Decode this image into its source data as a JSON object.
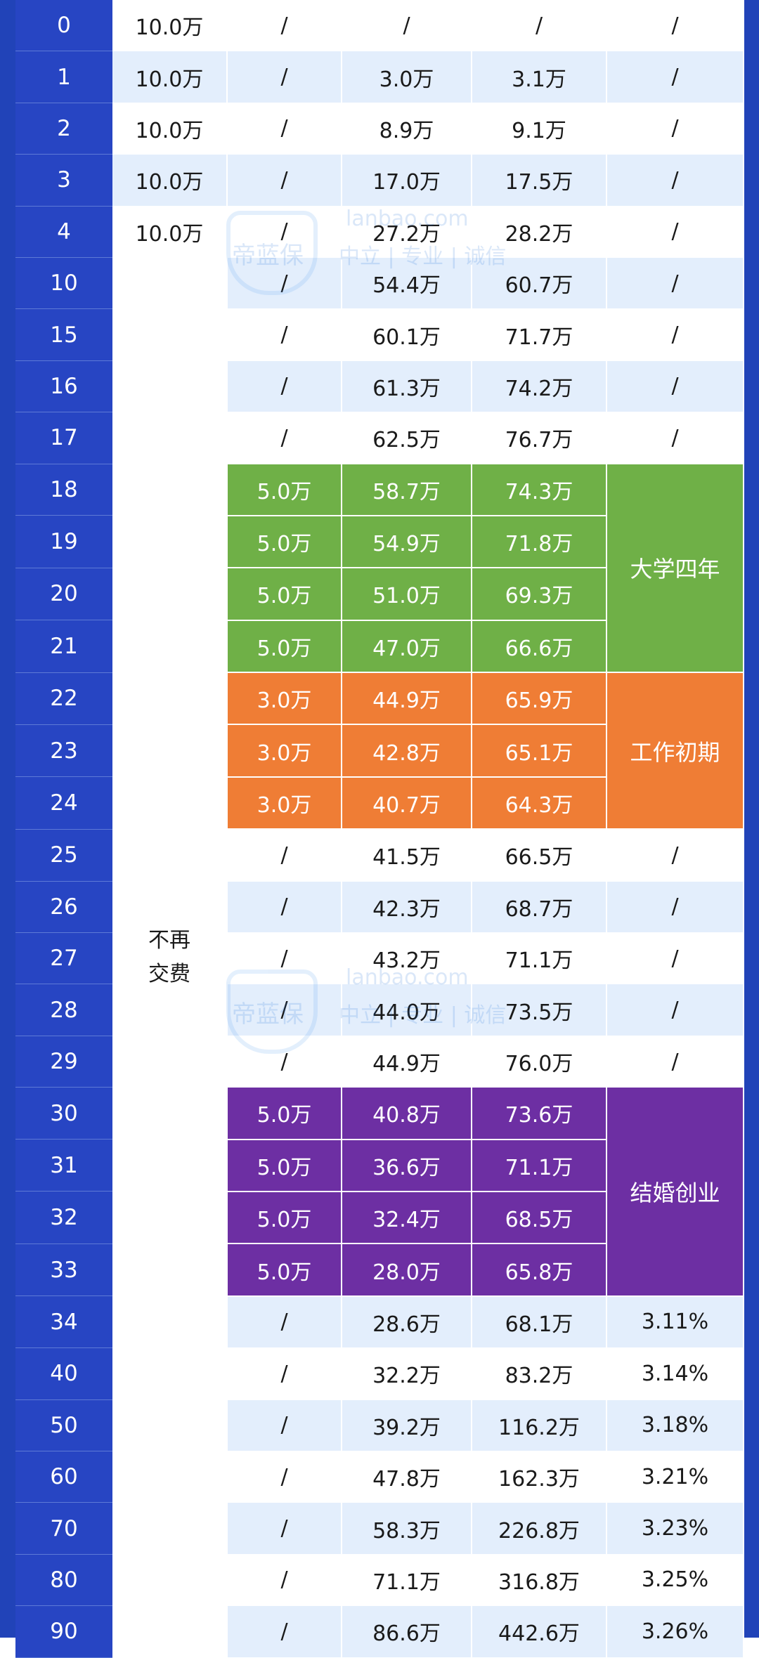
{
  "rows": [
    {
      "age": "0",
      "pay": "10.0万",
      "a": "/",
      "b": "/",
      "c": "/",
      "d": "/"
    },
    {
      "age": "1",
      "pay": "10.0万",
      "a": "/",
      "b": "3.0万",
      "c": "3.1万",
      "d": "/"
    },
    {
      "age": "2",
      "pay": "10.0万",
      "a": "/",
      "b": "8.9万",
      "c": "9.1万",
      "d": "/"
    },
    {
      "age": "3",
      "pay": "10.0万",
      "a": "/",
      "b": "17.0万",
      "c": "17.5万",
      "d": "/"
    },
    {
      "age": "4",
      "pay": "10.0万",
      "a": "/",
      "b": "27.2万",
      "c": "28.2万",
      "d": "/"
    },
    {
      "age": "10",
      "a": "/",
      "b": "54.4万",
      "c": "60.7万",
      "d": "/"
    },
    {
      "age": "15",
      "a": "/",
      "b": "60.1万",
      "c": "71.7万",
      "d": "/"
    },
    {
      "age": "16",
      "a": "/",
      "b": "61.3万",
      "c": "74.2万",
      "d": "/"
    },
    {
      "age": "17",
      "a": "/",
      "b": "62.5万",
      "c": "76.7万",
      "d": "/"
    },
    {
      "age": "18",
      "a": "5.0万",
      "b": "58.7万",
      "c": "74.3万"
    },
    {
      "age": "19",
      "a": "5.0万",
      "b": "54.9万",
      "c": "71.8万"
    },
    {
      "age": "20",
      "a": "5.0万",
      "b": "51.0万",
      "c": "69.3万"
    },
    {
      "age": "21",
      "a": "5.0万",
      "b": "47.0万",
      "c": "66.6万"
    },
    {
      "age": "22",
      "a": "3.0万",
      "b": "44.9万",
      "c": "65.9万"
    },
    {
      "age": "23",
      "a": "3.0万",
      "b": "42.8万",
      "c": "65.1万"
    },
    {
      "age": "24",
      "a": "3.0万",
      "b": "40.7万",
      "c": "64.3万"
    },
    {
      "age": "25",
      "a": "/",
      "b": "41.5万",
      "c": "66.5万",
      "d": "/"
    },
    {
      "age": "26",
      "a": "/",
      "b": "42.3万",
      "c": "68.7万",
      "d": "/"
    },
    {
      "age": "27",
      "a": "/",
      "b": "43.2万",
      "c": "71.1万",
      "d": "/"
    },
    {
      "age": "28",
      "a": "/",
      "b": "44.0万",
      "c": "73.5万",
      "d": "/"
    },
    {
      "age": "29",
      "a": "/",
      "b": "44.9万",
      "c": "76.0万",
      "d": "/"
    },
    {
      "age": "30",
      "a": "5.0万",
      "b": "40.8万",
      "c": "73.6万"
    },
    {
      "age": "31",
      "a": "5.0万",
      "b": "36.6万",
      "c": "71.1万"
    },
    {
      "age": "32",
      "a": "5.0万",
      "b": "32.4万",
      "c": "68.5万"
    },
    {
      "age": "33",
      "a": "5.0万",
      "b": "28.0万",
      "c": "65.8万"
    },
    {
      "age": "34",
      "a": "/",
      "b": "28.6万",
      "c": "68.1万",
      "d": "3.11%"
    },
    {
      "age": "40",
      "a": "/",
      "b": "32.2万",
      "c": "83.2万",
      "d": "3.14%"
    },
    {
      "age": "50",
      "a": "/",
      "b": "39.2万",
      "c": "116.2万",
      "d": "3.18%"
    },
    {
      "age": "60",
      "a": "/",
      "b": "47.8万",
      "c": "162.3万",
      "d": "3.21%"
    },
    {
      "age": "70",
      "a": "/",
      "b": "58.3万",
      "c": "226.8万",
      "d": "3.23%"
    },
    {
      "age": "80",
      "a": "/",
      "b": "71.1万",
      "c": "316.8万",
      "d": "3.25%"
    },
    {
      "age": "90",
      "a": "/",
      "b": "86.6万",
      "c": "442.6万",
      "d": "3.26%"
    }
  ],
  "nopay_label_line1": "不再",
  "nopay_label_line2": "交费",
  "span_labels": {
    "college": "大学四年",
    "early_career": "工作初期",
    "marriage_business": "结婚创业"
  },
  "watermark": {
    "brand": "帝蓝保",
    "domain": "lanbao.com",
    "slogan": "中立 | 专业 | 诚信"
  },
  "colors": {
    "age_column": "#2745c3",
    "row_light": "#e3eefc",
    "college": "#6fb047",
    "early_career": "#ef7d35",
    "marriage_business": "#6d2fa3"
  }
}
